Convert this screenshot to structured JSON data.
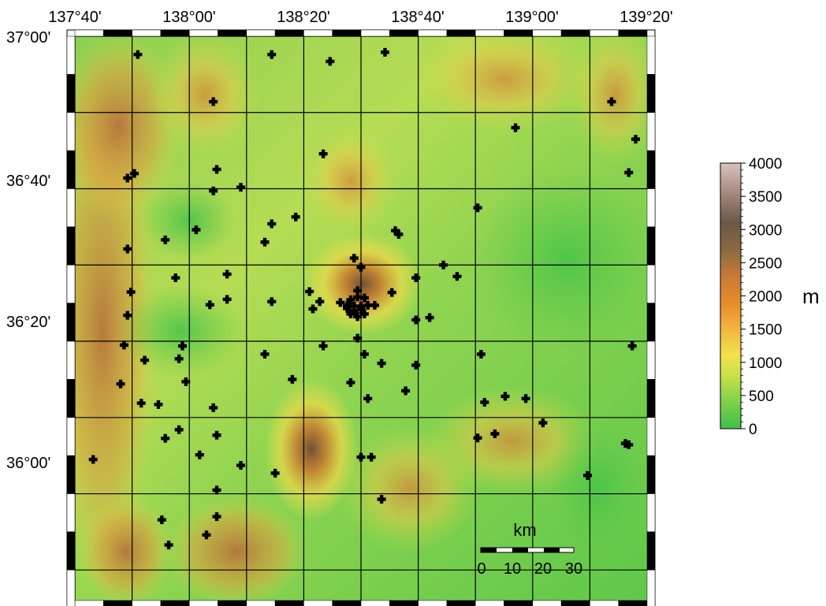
{
  "map": {
    "lon_labels": [
      "137°40'",
      "138°00'",
      "138°20'",
      "138°40'",
      "139°00'",
      "139°20'"
    ],
    "lat_labels": [
      "37°00'",
      "36°40'",
      "36°20'",
      "36°00'"
    ],
    "extent": {
      "lon_min": 137.6667,
      "lon_max": 139.3333,
      "lat_min": 35.7667,
      "lat_max": 37.0
    },
    "graticule": {
      "lon_step_deg": 0.1667,
      "lat_step_deg": 0.1667
    }
  },
  "stations": [
    [
      137.85,
      36.96
    ],
    [
      138.24,
      36.96
    ],
    [
      138.57,
      36.965
    ],
    [
      138.41,
      36.945
    ],
    [
      138.07,
      36.857
    ],
    [
      139.23,
      36.857
    ],
    [
      138.95,
      36.8
    ],
    [
      139.3,
      36.775
    ],
    [
      138.39,
      36.743
    ],
    [
      138.08,
      36.709
    ],
    [
      139.28,
      36.702
    ],
    [
      137.84,
      36.7
    ],
    [
      137.82,
      36.69
    ],
    [
      138.15,
      36.67
    ],
    [
      138.07,
      36.662
    ],
    [
      138.84,
      36.625
    ],
    [
      138.31,
      36.605
    ],
    [
      138.24,
      36.59
    ],
    [
      138.02,
      36.577
    ],
    [
      138.6,
      36.575
    ],
    [
      138.61,
      36.567
    ],
    [
      137.93,
      36.555
    ],
    [
      138.22,
      36.55
    ],
    [
      137.82,
      36.535
    ],
    [
      138.48,
      36.515
    ],
    [
      138.74,
      36.5
    ],
    [
      138.5,
      36.495
    ],
    [
      137.96,
      36.472
    ],
    [
      138.11,
      36.48
    ],
    [
      138.66,
      36.472
    ],
    [
      138.78,
      36.475
    ],
    [
      137.83,
      36.441
    ],
    [
      138.35,
      36.442
    ],
    [
      138.59,
      36.44
    ],
    [
      138.49,
      36.444
    ],
    [
      138.11,
      36.425
    ],
    [
      138.06,
      36.413
    ],
    [
      138.38,
      36.42
    ],
    [
      138.24,
      36.42
    ],
    [
      138.49,
      36.43
    ],
    [
      138.47,
      36.424
    ],
    [
      138.51,
      36.428
    ],
    [
      138.44,
      36.418
    ],
    [
      138.46,
      36.412
    ],
    [
      138.48,
      36.41
    ],
    [
      138.5,
      36.41
    ],
    [
      138.52,
      36.412
    ],
    [
      138.54,
      36.412
    ],
    [
      138.46,
      36.405
    ],
    [
      138.48,
      36.4
    ],
    [
      138.5,
      36.403
    ],
    [
      138.36,
      36.404
    ],
    [
      138.47,
      36.393
    ],
    [
      138.51,
      36.393
    ],
    [
      138.49,
      36.387
    ],
    [
      137.82,
      36.39
    ],
    [
      138.66,
      36.38
    ],
    [
      138.7,
      36.385
    ],
    [
      137.81,
      36.325
    ],
    [
      138.49,
      36.34
    ],
    [
      137.98,
      36.323
    ],
    [
      138.39,
      36.323
    ],
    [
      139.29,
      36.323
    ],
    [
      137.87,
      36.292
    ],
    [
      138.22,
      36.305
    ],
    [
      138.51,
      36.305
    ],
    [
      138.85,
      36.305
    ],
    [
      137.97,
      36.295
    ],
    [
      138.56,
      36.285
    ],
    [
      138.66,
      36.281
    ],
    [
      138.3,
      36.25
    ],
    [
      137.8,
      36.24
    ],
    [
      137.99,
      36.245
    ],
    [
      138.47,
      36.243
    ],
    [
      138.63,
      36.225
    ],
    [
      138.92,
      36.213
    ],
    [
      138.98,
      36.208
    ],
    [
      138.52,
      36.208
    ],
    [
      137.86,
      36.198
    ],
    [
      137.91,
      36.195
    ],
    [
      138.86,
      36.2
    ],
    [
      138.07,
      36.188
    ],
    [
      139.03,
      36.155
    ],
    [
      137.97,
      36.14
    ],
    [
      138.08,
      36.128
    ],
    [
      138.84,
      36.122
    ],
    [
      138.89,
      36.131
    ],
    [
      137.93,
      36.121
    ],
    [
      139.27,
      36.11
    ],
    [
      139.28,
      36.107
    ],
    [
      138.03,
      36.085
    ],
    [
      138.53,
      36.08
    ],
    [
      138.5,
      36.08
    ],
    [
      137.72,
      36.075
    ],
    [
      138.15,
      36.062
    ],
    [
      139.16,
      36.04
    ],
    [
      138.25,
      36.045
    ],
    [
      138.08,
      36.008
    ],
    [
      138.56,
      35.988
    ],
    [
      137.92,
      35.943
    ],
    [
      138.08,
      35.95
    ],
    [
      138.05,
      35.91
    ],
    [
      137.94,
      35.888
    ]
  ],
  "colorbar": {
    "ticks": [
      "4000",
      "3500",
      "3000",
      "2500",
      "2000",
      "1500",
      "1000",
      "500",
      "0"
    ],
    "unit": "m",
    "min": 0,
    "max": 4000,
    "colors": [
      [
        0,
        "#3fbf4a"
      ],
      [
        400,
        "#7fd14a"
      ],
      [
        800,
        "#c8e04a"
      ],
      [
        1100,
        "#f2e34a"
      ],
      [
        1500,
        "#f2b640"
      ],
      [
        1900,
        "#e88a2a"
      ],
      [
        2300,
        "#c87a36"
      ],
      [
        2700,
        "#8a6a3e"
      ],
      [
        3100,
        "#6a5846"
      ],
      [
        3500,
        "#a08278"
      ],
      [
        4000,
        "#d9c3bd"
      ]
    ]
  },
  "scale_bar": {
    "title": "km",
    "labels": [
      "0",
      "10",
      "20",
      "30"
    ]
  }
}
